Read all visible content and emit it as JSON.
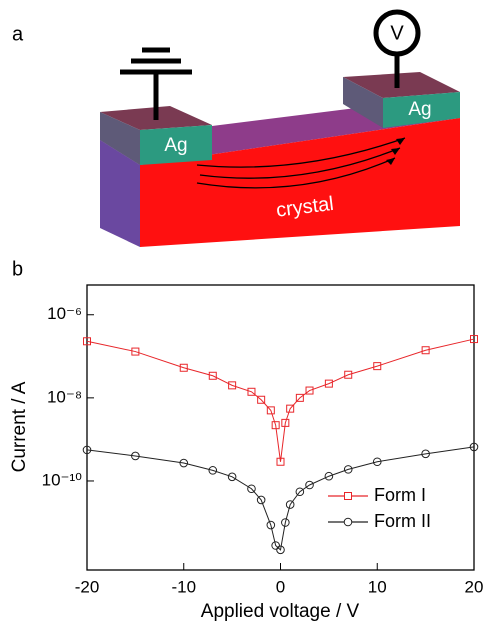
{
  "panel_a": {
    "label": "a",
    "left_electrode": "Ag",
    "right_electrode": "Ag",
    "meter": "V",
    "body": "crystal"
  },
  "panel_b": {
    "label": "b"
  },
  "chart_data": {
    "type": "scatter-line",
    "y_label": "Current / A",
    "x_label": "Applied voltage / V",
    "log_y": true,
    "legend": "lower right",
    "xlim": [
      -20,
      20
    ],
    "xticks": [
      -20,
      -10,
      0,
      10,
      20
    ],
    "ylim": [
      5.2e-06,
      7.2e-13
    ],
    "yticks": [
      {
        "value": 1e-06,
        "label": "10⁻⁶"
      },
      {
        "value": 1e-08,
        "label": "10⁻⁸"
      },
      {
        "value": 1e-10,
        "label": "10⁻¹⁰"
      }
    ],
    "x": [
      -20,
      -15,
      -10,
      -7,
      -5,
      -3,
      -2,
      -1,
      -0.5,
      0,
      0.5,
      1,
      2,
      3,
      5,
      7,
      10,
      15,
      20
    ],
    "series": [
      {
        "name": "Form I",
        "color": "#e8262a",
        "marker": "square",
        "values": [
          2.3e-07,
          1.3e-07,
          5.3e-08,
          3.4e-08,
          2e-08,
          1.4e-08,
          9e-09,
          5e-09,
          2.2e-09,
          2.9e-10,
          2.5e-09,
          5.5e-09,
          1e-08,
          1.5e-08,
          2.2e-08,
          3.6e-08,
          5.8e-08,
          1.4e-07,
          2.6e-07
        ]
      },
      {
        "name": "Form II",
        "color": "#222222",
        "marker": "circle",
        "values": [
          5.6e-10,
          4e-10,
          2.7e-10,
          1.8e-10,
          1.26e-10,
          6.5e-11,
          3.5e-11,
          8.7e-12,
          2.8e-12,
          2.2e-12,
          1e-11,
          2.7e-11,
          5.5e-11,
          8e-11,
          1.3e-10,
          1.9e-10,
          2.9e-10,
          4.5e-10,
          6.6e-10
        ]
      }
    ]
  }
}
